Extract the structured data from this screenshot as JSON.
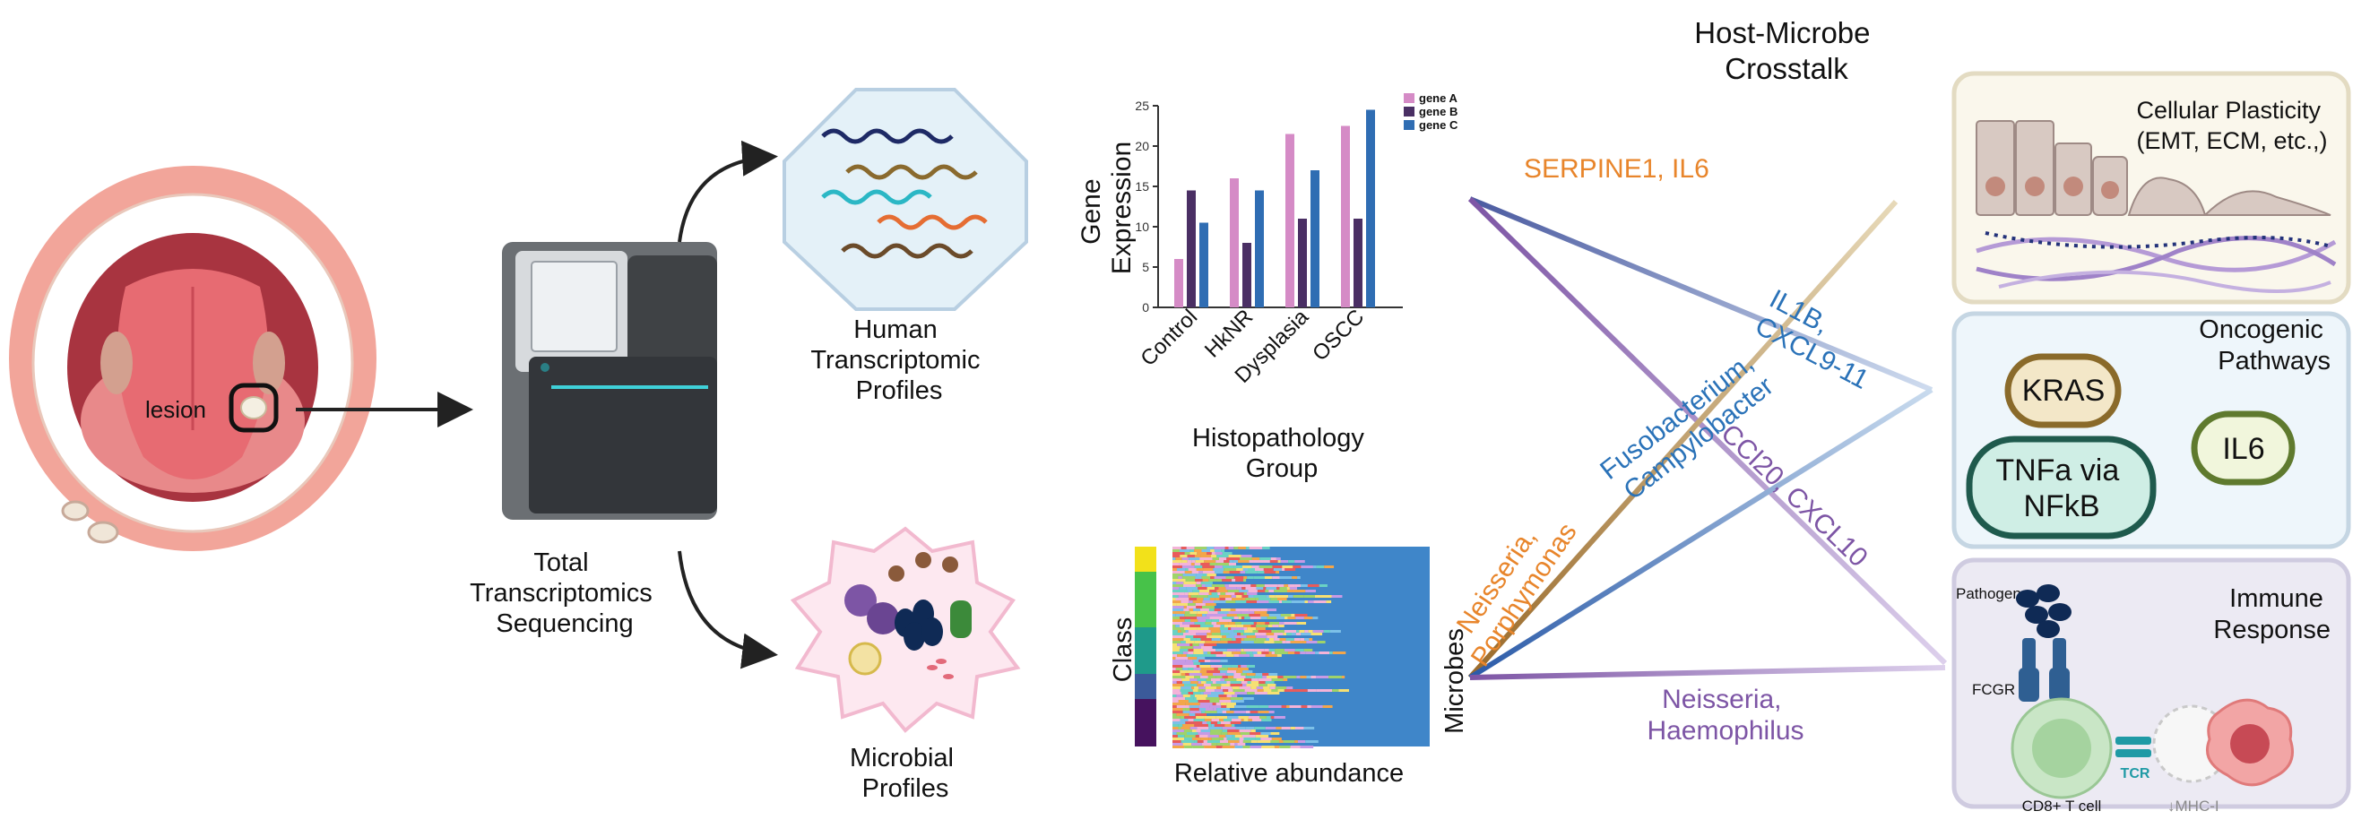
{
  "mouth": {
    "lesion_label": "lesion"
  },
  "sequencer": {
    "label": [
      "Total",
      "Transcriptomics",
      "Sequencing"
    ]
  },
  "human_profiles": {
    "label": [
      "Human",
      "Transcriptomic",
      "Profiles"
    ]
  },
  "microbial_profiles": {
    "label": [
      "Microbial",
      "Profiles"
    ]
  },
  "colors": {
    "gene_a": "#d58bc6",
    "gene_b": "#4a2f64",
    "gene_c": "#2f6db3",
    "orange": "#e8852b",
    "brown": "#9a6a2a",
    "blue": "#2a72b8",
    "purple": "#7d55a5"
  },
  "chart_data": {
    "type": "bar",
    "categories": [
      "Control",
      "HkNR",
      "Dysplasia",
      "OSCC"
    ],
    "series": [
      {
        "name": "gene A",
        "values": [
          6,
          16,
          21.5,
          22.5
        ]
      },
      {
        "name": "gene B",
        "values": [
          14.5,
          8,
          11,
          11
        ]
      },
      {
        "name": "gene C",
        "values": [
          10.5,
          14.5,
          17,
          24.5
        ]
      }
    ],
    "ylim": [
      0,
      25
    ],
    "yticks": [
      0,
      5,
      10,
      15,
      20,
      25
    ],
    "ylabel": [
      "Gene",
      "Expression"
    ],
    "xlabel": [
      "Histopathology",
      "Group"
    ],
    "legend_position": "top-right"
  },
  "abundance": {
    "ylabel": "Class",
    "xlabel": "Relative abundance",
    "class_colors": [
      "#f2e11a",
      "#47c249",
      "#1f9a8a",
      "#3b5a9a",
      "#46125e"
    ]
  },
  "crosstalk": {
    "title": [
      "Host-Microbe",
      "Crosstalk"
    ],
    "microbes_label": "Microbes",
    "edges": {
      "serpine": "SERPINE1, IL6",
      "il1b": [
        "IL1B,",
        "CXCL9-11"
      ],
      "neisseria_porphy": [
        "Neisseria,",
        "Porphymonas"
      ],
      "fuso": [
        "Fusobacterium,",
        "Campylobacter"
      ],
      "ccl20": "CCl20, CXCL10",
      "neisseria_haemo": [
        "Neisseria,",
        "Haemophilus"
      ]
    }
  },
  "panels": {
    "plasticity": {
      "title": [
        "Cellular Plasticity",
        "(EMT, ECM, etc.,)"
      ]
    },
    "oncogenic": {
      "title": [
        "Oncogenic",
        "Pathways"
      ],
      "kras": "KRAS",
      "tnfa": [
        "TNFa via",
        "NFkB"
      ],
      "il6": "IL6"
    },
    "immune": {
      "title": [
        "Immune",
        "Response"
      ],
      "pathogen": "Pathogen",
      "fcgr": "FCGR",
      "tcr": "TCR",
      "cd8": "CD8+ T cell",
      "mhc": "↓MHC-I"
    }
  }
}
